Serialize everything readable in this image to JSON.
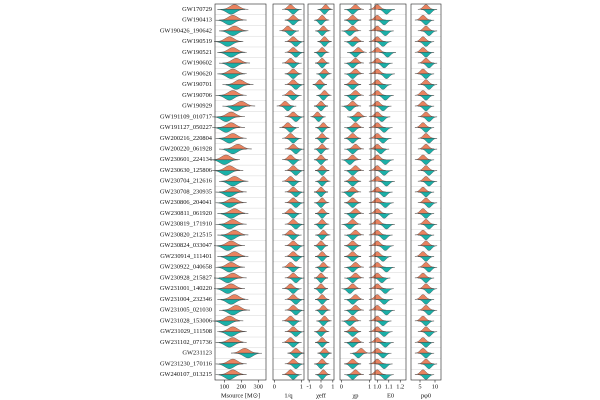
{
  "chart_data": {
    "type": "violin",
    "categories": [
      "GW170729",
      "GW190413",
      "GW190426_190642",
      "GW190519",
      "GW190521",
      "GW190602",
      "GW190620",
      "GW190701",
      "GW190706",
      "GW190929",
      "GW191109_010717",
      "GW191127_050227",
      "GW200216_220804",
      "GW200220_061928",
      "GW230601_224134",
      "GW230630_125806",
      "GW230704_212616",
      "GW230708_230935",
      "GW230806_204041",
      "GW230811_061920",
      "GW230819_171910",
      "GW230820_212515",
      "GW230824_033047",
      "GW230914_111401",
      "GW230922_040658",
      "GW230928_215827",
      "GW231001_140220",
      "GW231004_232346",
      "GW231005_021030",
      "GW231028_153006",
      "GW231029_111508",
      "GW231102_071736",
      "GW231123",
      "GW231230_170116",
      "GW240107_013215"
    ],
    "panels": [
      {
        "xlabel": "Msource [M⊙]",
        "xlim": [
          45,
          345
        ],
        "xticks": [
          100,
          200,
          300
        ],
        "series": [
          {
            "color": "#e8825f",
            "values": [
              160,
              150,
              160,
              130,
              150,
              170,
              150,
              190,
              150,
              200,
              140,
              140,
              150,
              180,
              110,
              130,
              160,
              150,
              150,
              160,
              150,
              160,
              140,
              160,
              140,
              150,
              140,
              160,
              170,
              130,
              150,
              150,
              220,
              150,
              150
            ]
          },
          {
            "color": "#1ab0a8",
            "values": [
              140,
              130,
              150,
              120,
              140,
              150,
              140,
              170,
              130,
              170,
              110,
              110,
              130,
              150,
              100,
              110,
              150,
              130,
              130,
              140,
              130,
              140,
              120,
              140,
              130,
              120,
              120,
              140,
              150,
              110,
              140,
              130,
              240,
              130,
              130
            ]
          }
        ]
      },
      {
        "xlabel": "1/q",
        "xlim": [
          -0.05,
          1.1
        ],
        "xticks": [
          0,
          1
        ],
        "series": [
          {
            "color": "#e8825f",
            "values": [
              0.6,
              0.7,
              0.5,
              0.7,
              0.7,
              0.6,
              0.7,
              0.7,
              0.6,
              0.4,
              0.7,
              0.5,
              0.6,
              0.7,
              0.6,
              0.7,
              0.6,
              0.7,
              0.7,
              0.6,
              0.7,
              0.6,
              0.7,
              0.7,
              0.6,
              0.7,
              0.6,
              0.7,
              0.7,
              0.6,
              0.7,
              0.6,
              0.8,
              0.7,
              0.6
            ]
          },
          {
            "color": "#1ab0a8",
            "values": [
              0.7,
              0.7,
              0.6,
              0.8,
              0.8,
              0.7,
              0.7,
              0.8,
              0.7,
              0.5,
              0.8,
              0.6,
              0.7,
              0.8,
              0.7,
              0.8,
              0.7,
              0.8,
              0.8,
              0.7,
              0.8,
              0.7,
              0.8,
              0.8,
              0.7,
              0.8,
              0.7,
              0.8,
              0.8,
              0.7,
              0.8,
              0.7,
              0.8,
              0.8,
              0.7
            ]
          }
        ]
      },
      {
        "xlabel": "χeff",
        "xlim": [
          -1.1,
          1.1
        ],
        "xticks": [
          -1,
          0,
          1
        ],
        "series": [
          {
            "color": "#e8825f",
            "values": [
              0.4,
              0.1,
              0.2,
              0.3,
              0.1,
              0.1,
              0.3,
              -0.1,
              0.3,
              0.0,
              -0.3,
              0.2,
              0.1,
              0.1,
              0.0,
              0.1,
              0.2,
              0.0,
              0.1,
              0.1,
              0.1,
              0.2,
              0.0,
              0.1,
              0.2,
              0.0,
              0.0,
              0.1,
              0.2,
              0.3,
              0.1,
              0.1,
              0.3,
              0.1,
              0.2
            ]
          },
          {
            "color": "#1ab0a8",
            "values": [
              0.3,
              0.0,
              0.1,
              0.3,
              0.0,
              0.1,
              0.2,
              -0.1,
              0.2,
              0.0,
              -0.2,
              0.1,
              0.1,
              0.0,
              0.0,
              0.1,
              0.1,
              0.0,
              0.0,
              0.1,
              0.0,
              0.1,
              0.0,
              0.1,
              0.1,
              0.0,
              0.0,
              0.1,
              0.1,
              0.2,
              0.0,
              0.1,
              0.3,
              0.0,
              0.1
            ]
          }
        ]
      },
      {
        "xlabel": "χp",
        "xlim": [
          -0.05,
          1.05
        ],
        "xticks": [
          0,
          1
        ],
        "series": [
          {
            "color": "#e8825f",
            "values": [
              0.5,
              0.4,
              0.4,
              0.5,
              0.6,
              0.5,
              0.5,
              0.4,
              0.5,
              0.4,
              0.6,
              0.5,
              0.4,
              0.5,
              0.4,
              0.5,
              0.4,
              0.4,
              0.4,
              0.5,
              0.4,
              0.5,
              0.4,
              0.4,
              0.5,
              0.5,
              0.4,
              0.5,
              0.5,
              0.4,
              0.4,
              0.5,
              0.7,
              0.4,
              0.5
            ]
          },
          {
            "color": "#1ab0a8",
            "values": [
              0.4,
              0.4,
              0.3,
              0.4,
              0.5,
              0.4,
              0.4,
              0.4,
              0.4,
              0.3,
              0.5,
              0.4,
              0.4,
              0.4,
              0.3,
              0.4,
              0.4,
              0.3,
              0.4,
              0.4,
              0.3,
              0.4,
              0.4,
              0.4,
              0.4,
              0.4,
              0.3,
              0.4,
              0.4,
              0.3,
              0.4,
              0.4,
              0.6,
              0.4,
              0.4
            ]
          }
        ]
      },
      {
        "xlabel": "E0",
        "xlim": [
          0.98,
          1.25
        ],
        "xticks": [
          {
            "value": 1,
            "label": "1.0"
          },
          1.1,
          1.2
        ],
        "series": [
          {
            "color": "#e8825f",
            "values": [
              1.0,
              1.0,
              1.0,
              1.0,
              1.0,
              1.0,
              1.0,
              1.0,
              1.0,
              1.0,
              1.0,
              1.0,
              1.0,
              1.0,
              1.0,
              1.0,
              1.0,
              1.0,
              1.0,
              1.0,
              1.0,
              1.0,
              1.0,
              1.0,
              1.0,
              1.0,
              1.0,
              1.0,
              1.0,
              1.0,
              1.0,
              1.0,
              1.0,
              1.0,
              1.0
            ]
          },
          {
            "color": "#1ab0a8",
            "values": [
              1.08,
              1.06,
              1.07,
              1.05,
              1.09,
              1.06,
              1.08,
              1.05,
              1.07,
              1.05,
              1.04,
              1.06,
              1.05,
              1.03,
              1.07,
              1.06,
              1.08,
              1.06,
              1.07,
              1.06,
              1.08,
              1.06,
              1.07,
              1.05,
              1.08,
              1.04,
              1.07,
              1.06,
              1.08,
              1.05,
              1.06,
              1.07,
              1.05,
              1.06,
              1.07
            ]
          }
        ]
      },
      {
        "xlabel": "pφ0",
        "xlim": [
          2,
          12
        ],
        "xticks": [
          5,
          10
        ],
        "series": [
          {
            "color": "#e8825f",
            "values": [
              7,
              6,
              7,
              6,
              6,
              7,
              6,
              7,
              6,
              6,
              7,
              6,
              7,
              7,
              6,
              7,
              7,
              6,
              7,
              6,
              7,
              6,
              7,
              6,
              7,
              6,
              7,
              6,
              7,
              6,
              7,
              6,
              6,
              7,
              6
            ]
          },
          {
            "color": "#1ab0a8",
            "values": [
              8,
              7,
              8,
              7,
              7,
              8,
              7,
              8,
              7,
              7,
              8,
              7,
              8,
              8,
              7,
              8,
              8,
              7,
              8,
              7,
              8,
              7,
              8,
              7,
              8,
              7,
              8,
              7,
              8,
              7,
              8,
              7,
              7,
              8,
              7
            ]
          }
        ]
      }
    ]
  }
}
